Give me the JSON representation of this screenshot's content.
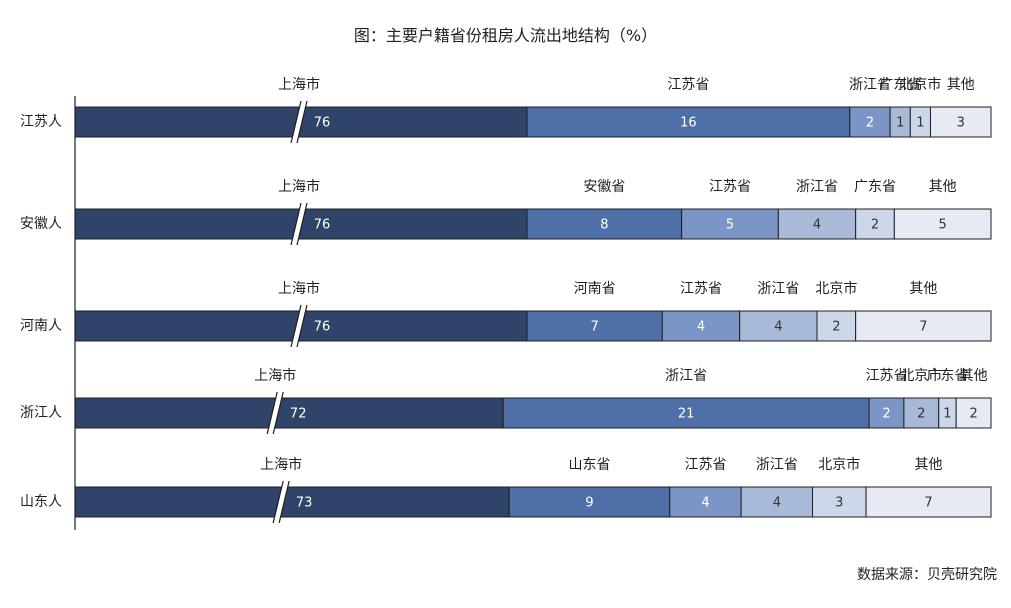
{
  "title": "图：主要户籍省份租房人流出地结构（%）",
  "source": "数据来源：贝壳研究院",
  "chart_data": {
    "type": "bar",
    "orientation": "horizontal",
    "stacked": true,
    "axis_break": true,
    "colors": [
      "#2f4468",
      "#4e6fa8",
      "#7b96c6",
      "#a9bad9",
      "#cdd7ea",
      "#e5eaf3"
    ],
    "rows": [
      {
        "category": "江苏人",
        "segments": [
          {
            "name": "上海市",
            "value": 76
          },
          {
            "name": "江苏省",
            "value": 16
          },
          {
            "name": "浙江省",
            "value": 2
          },
          {
            "name": "广东省",
            "value": 1
          },
          {
            "name": "北京市",
            "value": 1
          },
          {
            "name": "其他",
            "value": 3
          }
        ]
      },
      {
        "category": "安徽人",
        "segments": [
          {
            "name": "上海市",
            "value": 76
          },
          {
            "name": "安徽省",
            "value": 8
          },
          {
            "name": "江苏省",
            "value": 5
          },
          {
            "name": "浙江省",
            "value": 4
          },
          {
            "name": "广东省",
            "value": 2
          },
          {
            "name": "其他",
            "value": 5
          }
        ]
      },
      {
        "category": "河南人",
        "segments": [
          {
            "name": "上海市",
            "value": 76
          },
          {
            "name": "河南省",
            "value": 7
          },
          {
            "name": "江苏省",
            "value": 4
          },
          {
            "name": "浙江省",
            "value": 4
          },
          {
            "name": "北京市",
            "value": 2
          },
          {
            "name": "其他",
            "value": 7
          }
        ]
      },
      {
        "category": "浙江人",
        "segments": [
          {
            "name": "上海市",
            "value": 72
          },
          {
            "name": "浙江省",
            "value": 21
          },
          {
            "name": "江苏省",
            "value": 2
          },
          {
            "name": "北京市",
            "value": 2
          },
          {
            "name": "广东省",
            "value": 1
          },
          {
            "name": "其他",
            "value": 2
          }
        ]
      },
      {
        "category": "山东人",
        "segments": [
          {
            "name": "上海市",
            "value": 73
          },
          {
            "name": "山东省",
            "value": 9
          },
          {
            "name": "江苏省",
            "value": 4
          },
          {
            "name": "浙江省",
            "value": 4
          },
          {
            "name": "北京市",
            "value": 3
          },
          {
            "name": "其他",
            "value": 7
          }
        ]
      }
    ]
  }
}
